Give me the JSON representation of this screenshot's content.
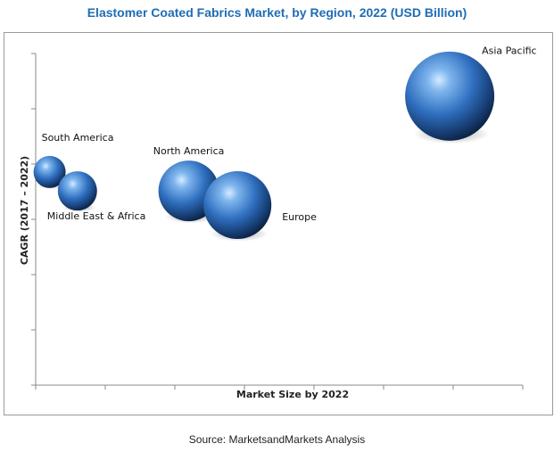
{
  "title": "Elastomer Coated Fabrics Market, by Region, 2022 (USD Billion)",
  "source": "Source: MarketsandMarkets Analysis",
  "chart_data": {
    "type": "scatter",
    "subtype": "bubble",
    "title": "Elastomer Coated Fabrics Market, by Region, 2022 (USD Billion)",
    "xlabel": "Market Size by 2022",
    "ylabel": "CAGR (2017 – 2022)",
    "x_ticks_labeled": false,
    "y_ticks_labeled": false,
    "grid": false,
    "series": [
      {
        "name": "South America",
        "x": 0.4,
        "y": 4.5,
        "size": 0.4,
        "label_position": "above"
      },
      {
        "name": "Middle East & Africa",
        "x": 1.2,
        "y": 4.1,
        "size": 0.6,
        "label_position": "below"
      },
      {
        "name": "North America",
        "x": 4.4,
        "y": 4.1,
        "size": 1.2,
        "label_position": "above"
      },
      {
        "name": "Europe",
        "x": 5.8,
        "y": 3.8,
        "size": 1.4,
        "label_position": "right"
      },
      {
        "name": "Asia Pacific",
        "x": 11.9,
        "y": 6.1,
        "size": 2.0,
        "label_position": "above-right"
      }
    ],
    "xlim": [
      0,
      14
    ],
    "ylim": [
      0,
      7
    ],
    "bubble_color": "#3a7fd0"
  }
}
